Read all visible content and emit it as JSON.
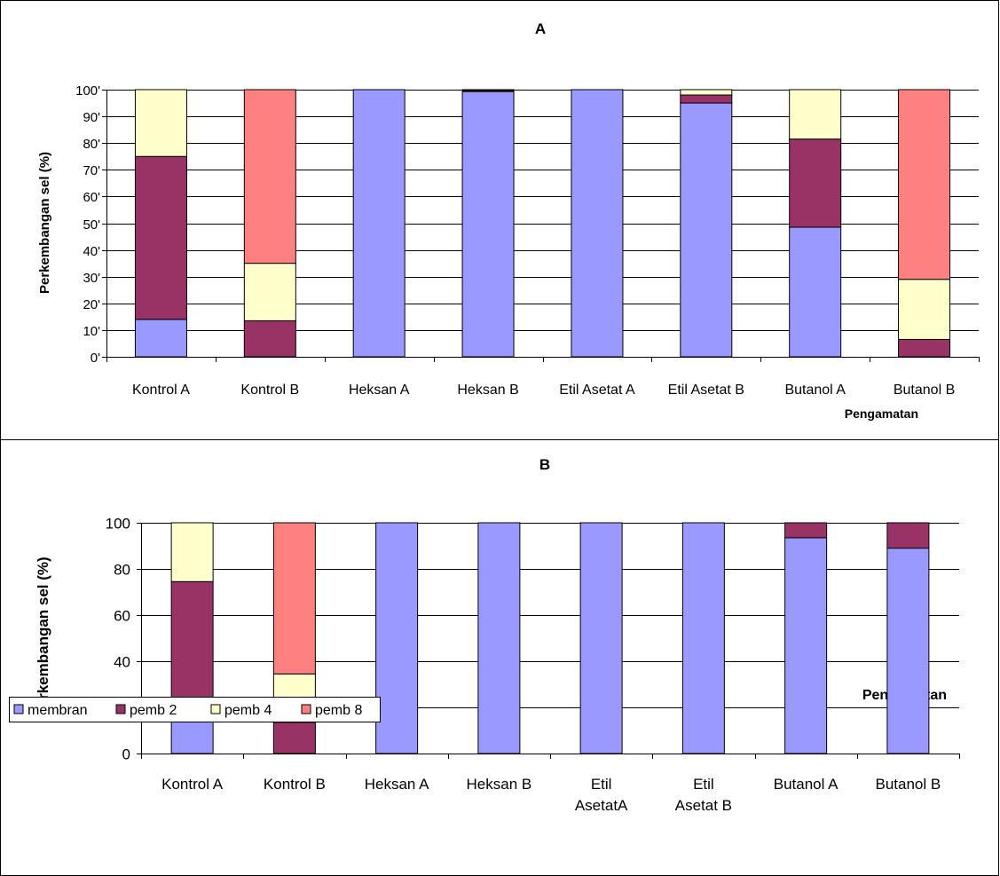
{
  "legend": {
    "items": [
      {
        "label": "membran",
        "color": "#9999ff"
      },
      {
        "label": "pemb 2",
        "color": "#993366"
      },
      {
        "label": "pemb 4",
        "color": "#ffffcc"
      },
      {
        "label": "pemb 8",
        "color": "#ff8080"
      }
    ]
  },
  "chart_data": [
    {
      "type": "bar",
      "stacked": true,
      "title": "A",
      "ylabel": "Perkembangan sel (%)",
      "xlabel": "Pengamatan",
      "ylim": [
        0,
        100
      ],
      "yticks": [
        "0'",
        "10'",
        "20'",
        "30'",
        "40'",
        "50'",
        "60'",
        "70'",
        "80'",
        "90'",
        "100'"
      ],
      "categories": [
        "Kontrol A",
        "Kontrol B",
        "Heksan A",
        "Heksan B",
        "Etil Asetat A",
        "Etil Asetat B",
        "Butanol A",
        "Butanol B"
      ],
      "series": [
        {
          "name": "membran",
          "values": [
            14,
            0,
            100,
            99.3,
            100,
            95,
            48.5,
            0
          ]
        },
        {
          "name": "pemb 2",
          "values": [
            61,
            13.5,
            0,
            0.4,
            0,
            3,
            33,
            6.5
          ]
        },
        {
          "name": "pemb 4",
          "values": [
            25,
            21.5,
            0,
            0.3,
            0,
            2,
            18.5,
            22.5
          ]
        },
        {
          "name": "pemb 8",
          "values": [
            0,
            65,
            0,
            0,
            0,
            0,
            0,
            71
          ]
        }
      ],
      "grid": true
    },
    {
      "type": "bar",
      "stacked": true,
      "title": "B",
      "ylabel": "Perkembangan sel (%)",
      "xlabel": "Pengamatan",
      "ylim": [
        0,
        100
      ],
      "yticks": [
        "0",
        "20",
        "40",
        "60",
        "80",
        "100"
      ],
      "categories": [
        "Kontrol A",
        "Kontrol B",
        "Heksan A",
        "Heksan B",
        "Etil\nAsetatA",
        "Etil\nAsetat B",
        "Butanol A",
        "Butanol B"
      ],
      "series": [
        {
          "name": "membran",
          "values": [
            14,
            0,
            100,
            100,
            100,
            100,
            93.5,
            89
          ]
        },
        {
          "name": "pemb 2",
          "values": [
            60.5,
            13.5,
            0,
            0,
            0,
            0,
            6.5,
            11
          ]
        },
        {
          "name": "pemb 4",
          "values": [
            25.5,
            21,
            0,
            0,
            0,
            0,
            0,
            0
          ]
        },
        {
          "name": "pemb 8",
          "values": [
            0,
            65.5,
            0,
            0,
            0,
            0,
            0,
            0
          ]
        }
      ],
      "grid": true
    }
  ]
}
